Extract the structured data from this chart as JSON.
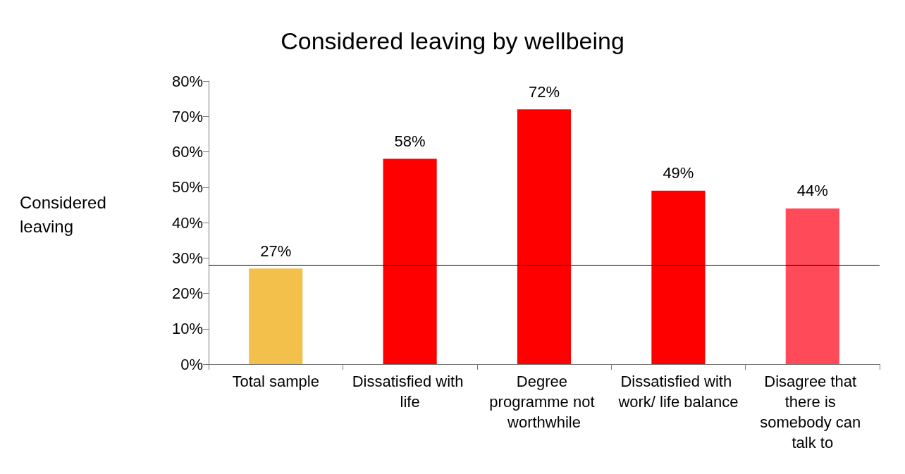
{
  "chart_data": {
    "type": "bar",
    "title": "Considered leaving by wellbeing",
    "ylabel": "Considered leaving",
    "categories": [
      "Total sample",
      "Dissatisfied with life",
      "Degree programme not worthwhile",
      "Dissatisfied with work/ life balance",
      "Disagree that there is somebody can talk to"
    ],
    "values": [
      27,
      58,
      72,
      49,
      44
    ],
    "colors": [
      "#f4c04c",
      "#ff0000",
      "#ff0000",
      "#ff0000",
      "#ff4a5a"
    ],
    "value_labels": [
      "27%",
      "58%",
      "72%",
      "49%",
      "44%"
    ],
    "ylim": [
      0,
      80
    ],
    "yticks": [
      {
        "value": 0,
        "label": "0%"
      },
      {
        "value": 10,
        "label": "10%"
      },
      {
        "value": 20,
        "label": "20%"
      },
      {
        "value": 30,
        "label": "30%"
      },
      {
        "value": 40,
        "label": "40%"
      },
      {
        "value": 50,
        "label": "50%"
      },
      {
        "value": 60,
        "label": "60%"
      },
      {
        "value": 70,
        "label": "70%"
      },
      {
        "value": 80,
        "label": "80%"
      }
    ],
    "ref_lines": [
      {
        "axis": "y",
        "value": 28,
        "color": "#000000"
      }
    ],
    "grid": false
  }
}
